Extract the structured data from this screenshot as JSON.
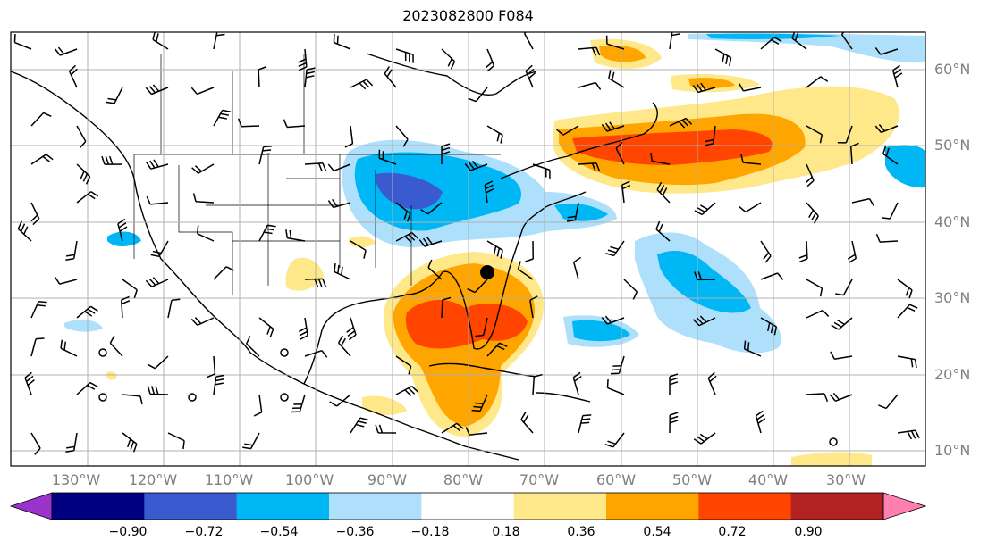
{
  "title": "2023082800 F084",
  "lat_labels": [
    "60°N",
    "50°N",
    "40°N",
    "30°N",
    "20°N",
    "10°N"
  ],
  "lon_labels": [
    "130°W",
    "120°W",
    "110°W",
    "100°W",
    "90°W",
    "80°W",
    "70°W",
    "60°W",
    "50°W",
    "40°W",
    "30°W"
  ],
  "colorbar": {
    "ticks": [
      "−0.90",
      "−0.72",
      "−0.54",
      "−0.36",
      "−0.18",
      "0.18",
      "0.36",
      "0.54",
      "0.72",
      "0.90"
    ],
    "colors": [
      "#9933cc",
      "#000080",
      "#3a5bd0",
      "#00b7f5",
      "#aee0fb",
      "#ffffff",
      "#ffe88a",
      "#ffa500",
      "#ff4500",
      "#b22222",
      "#ff80b0"
    ]
  },
  "marker": {
    "label": "black-dot",
    "color": "#000000"
  },
  "colors": {
    "grid": "#b0b0b0",
    "coast": "#000000",
    "tick_label": "#808080"
  }
}
